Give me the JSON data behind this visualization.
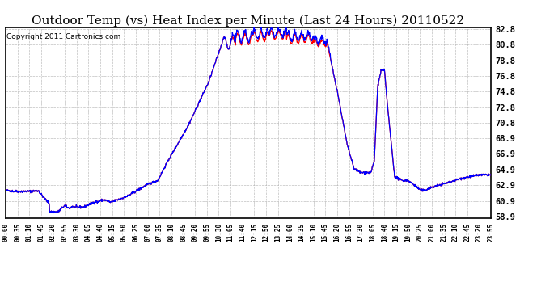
{
  "title": "Outdoor Temp (vs) Heat Index per Minute (Last 24 Hours) 20110522",
  "copyright": "Copyright 2011 Cartronics.com",
  "yticks": [
    58.9,
    60.9,
    62.9,
    64.9,
    66.9,
    68.9,
    70.8,
    72.8,
    74.8,
    76.8,
    78.8,
    80.8,
    82.8
  ],
  "ymin": 58.9,
  "ymax": 82.8,
  "bg_color": "#ffffff",
  "plot_bg_color": "#ffffff",
  "grid_color": "#b0b0b0",
  "line_color_temp": "#ff0000",
  "line_color_heat": "#0000ff",
  "title_fontsize": 11,
  "copyright_fontsize": 6.5,
  "xtick_fontsize": 5.5,
  "ytick_fontsize": 7.5
}
